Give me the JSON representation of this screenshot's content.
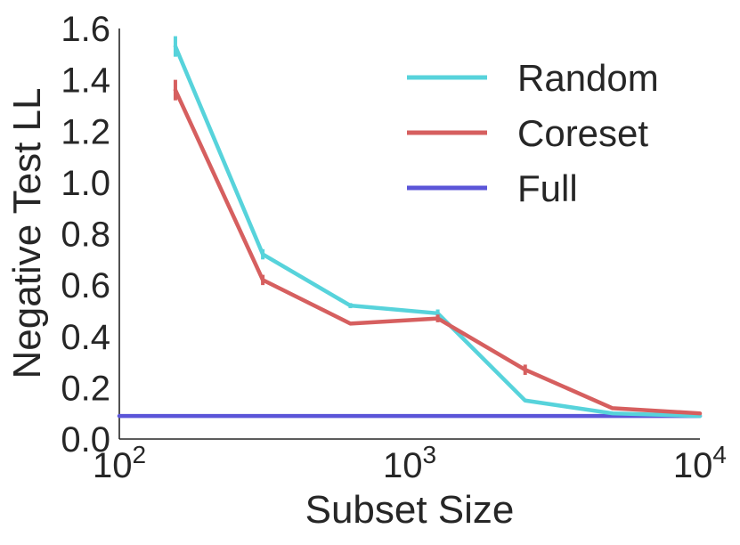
{
  "chart_data": {
    "type": "line",
    "title": "",
    "xlabel": "Subset Size",
    "ylabel": "Negative Test LL",
    "xscale": "log",
    "xlim": [
      100,
      10000
    ],
    "ylim": [
      0.0,
      1.6
    ],
    "grid": false,
    "legend_position": "top-right",
    "x_ticks": [
      {
        "value": 100,
        "base": "10",
        "exp": "2"
      },
      {
        "value": 1000,
        "base": "10",
        "exp": "3"
      },
      {
        "value": 10000,
        "base": "10",
        "exp": "4"
      }
    ],
    "y_ticks": [
      "0.0",
      "0.2",
      "0.4",
      "0.6",
      "0.8",
      "1.0",
      "1.2",
      "1.4",
      "1.6"
    ],
    "series": [
      {
        "name": "Random",
        "color": "#57d3db",
        "x": [
          156,
          312,
          625,
          1250,
          2500,
          5000,
          10000
        ],
        "y": [
          1.53,
          0.72,
          0.52,
          0.49,
          0.15,
          0.1,
          0.09
        ],
        "err": [
          0.04,
          0.02,
          0.01,
          0.015,
          0.0,
          0.0,
          0.0
        ]
      },
      {
        "name": "Coreset",
        "color": "#d65f5f",
        "x": [
          156,
          312,
          625,
          1250,
          2500,
          5000,
          10000
        ],
        "y": [
          1.36,
          0.62,
          0.45,
          0.47,
          0.27,
          0.12,
          0.1
        ],
        "err": [
          0.04,
          0.02,
          0.0,
          0.015,
          0.02,
          0.0,
          0.0
        ]
      },
      {
        "name": "Full",
        "color": "#5b55d8",
        "x": [
          100,
          10000
        ],
        "y": [
          0.09,
          0.09
        ],
        "err": [
          0.0,
          0.0
        ]
      }
    ]
  }
}
